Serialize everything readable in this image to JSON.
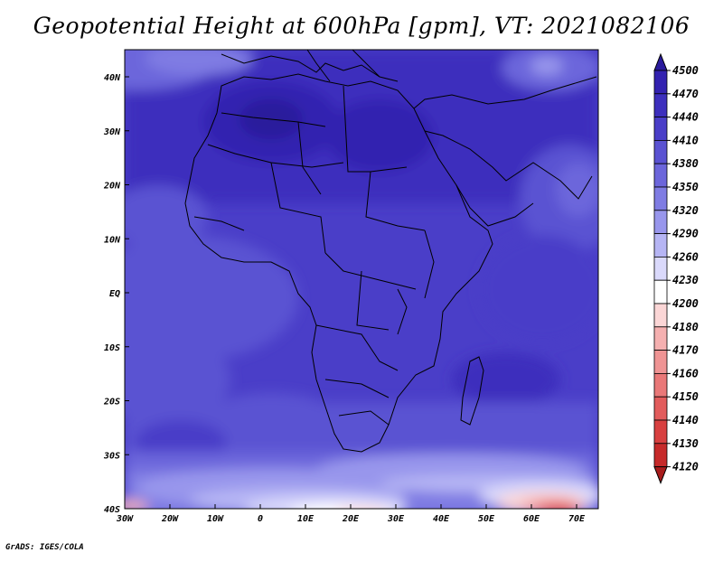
{
  "title": "Geopotential Height at 600hPa [gpm], VT: 2021082106",
  "footer": "GrADS: IGES/COLA",
  "map": {
    "lon_ticks": [
      "30W",
      "20W",
      "10W",
      "0",
      "10E",
      "20E",
      "30E",
      "40E",
      "50E",
      "60E",
      "70E"
    ],
    "lat_ticks": [
      "40N",
      "30N",
      "20N",
      "10N",
      "EQ",
      "10S",
      "20S",
      "30S",
      "40S"
    ]
  },
  "colorbar": {
    "labels": [
      "4500",
      "4470",
      "4440",
      "4410",
      "4380",
      "4350",
      "4320",
      "4290",
      "4260",
      "4230",
      "4200",
      "4180",
      "4170",
      "4160",
      "4150",
      "4140",
      "4130",
      "4120"
    ],
    "colors": [
      "#2a1a9c",
      "#3322b0",
      "#3d2fbd",
      "#4a3ec8",
      "#5a52d2",
      "#6c66db",
      "#7f7ce3",
      "#9896ec",
      "#b6b5f4",
      "#dad9fb",
      "#ffffff",
      "#fbd6d6",
      "#f5b0b0",
      "#ef9494",
      "#e97878",
      "#e25c5c",
      "#d84040",
      "#c62a2a",
      "#a81c1c"
    ]
  }
}
